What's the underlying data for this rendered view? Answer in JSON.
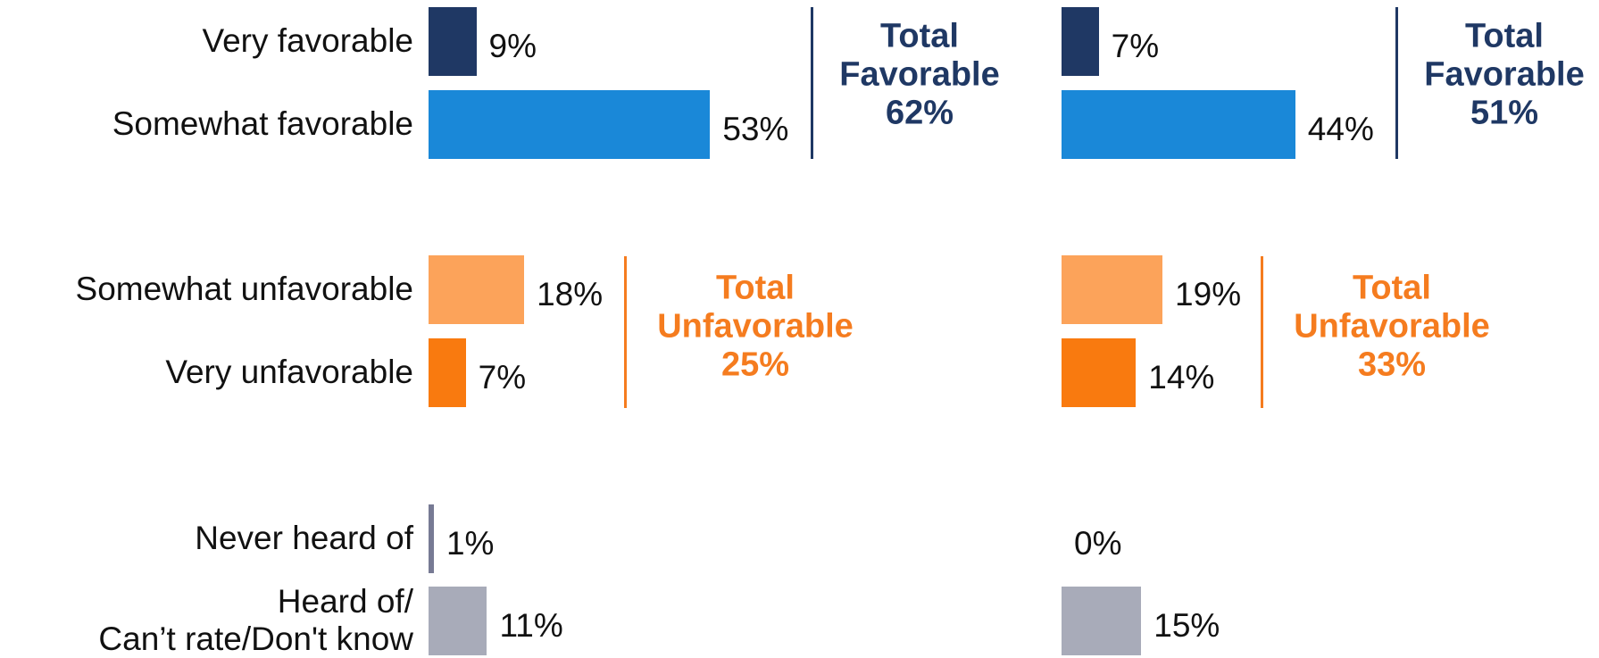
{
  "chart_data": {
    "type": "bar",
    "orientation": "horizontal",
    "categories": [
      "Very favorable",
      "Somewhat favorable",
      "Somewhat unfavorable",
      "Very unfavorable",
      "Never heard of",
      "Heard of/\nCan’t rate/Don't know"
    ],
    "colors": [
      "#1f3864",
      "#1a88d8",
      "#fca35a",
      "#f97a0f",
      "#777a94",
      "#a8abb9"
    ],
    "series": [
      {
        "values": [
          9,
          53,
          18,
          7,
          1,
          11
        ],
        "value_labels": [
          "9%",
          "53%",
          "18%",
          "7%",
          "1%",
          "11%"
        ]
      },
      {
        "values": [
          7,
          44,
          19,
          14,
          0,
          15
        ],
        "value_labels": [
          "7%",
          "44%",
          "19%",
          "14%",
          "0%",
          "15%"
        ]
      }
    ],
    "groups": [
      {
        "lines": [
          "Total",
          "Favorable"
        ],
        "color": "#1f3864",
        "values": [
          62,
          51
        ],
        "value_labels": [
          "62%",
          "51%"
        ]
      },
      {
        "lines": [
          "Total",
          "Unfavorable"
        ],
        "color": "#f57c1f",
        "values": [
          25,
          33
        ],
        "value_labels": [
          "25%",
          "33%"
        ]
      }
    ]
  }
}
